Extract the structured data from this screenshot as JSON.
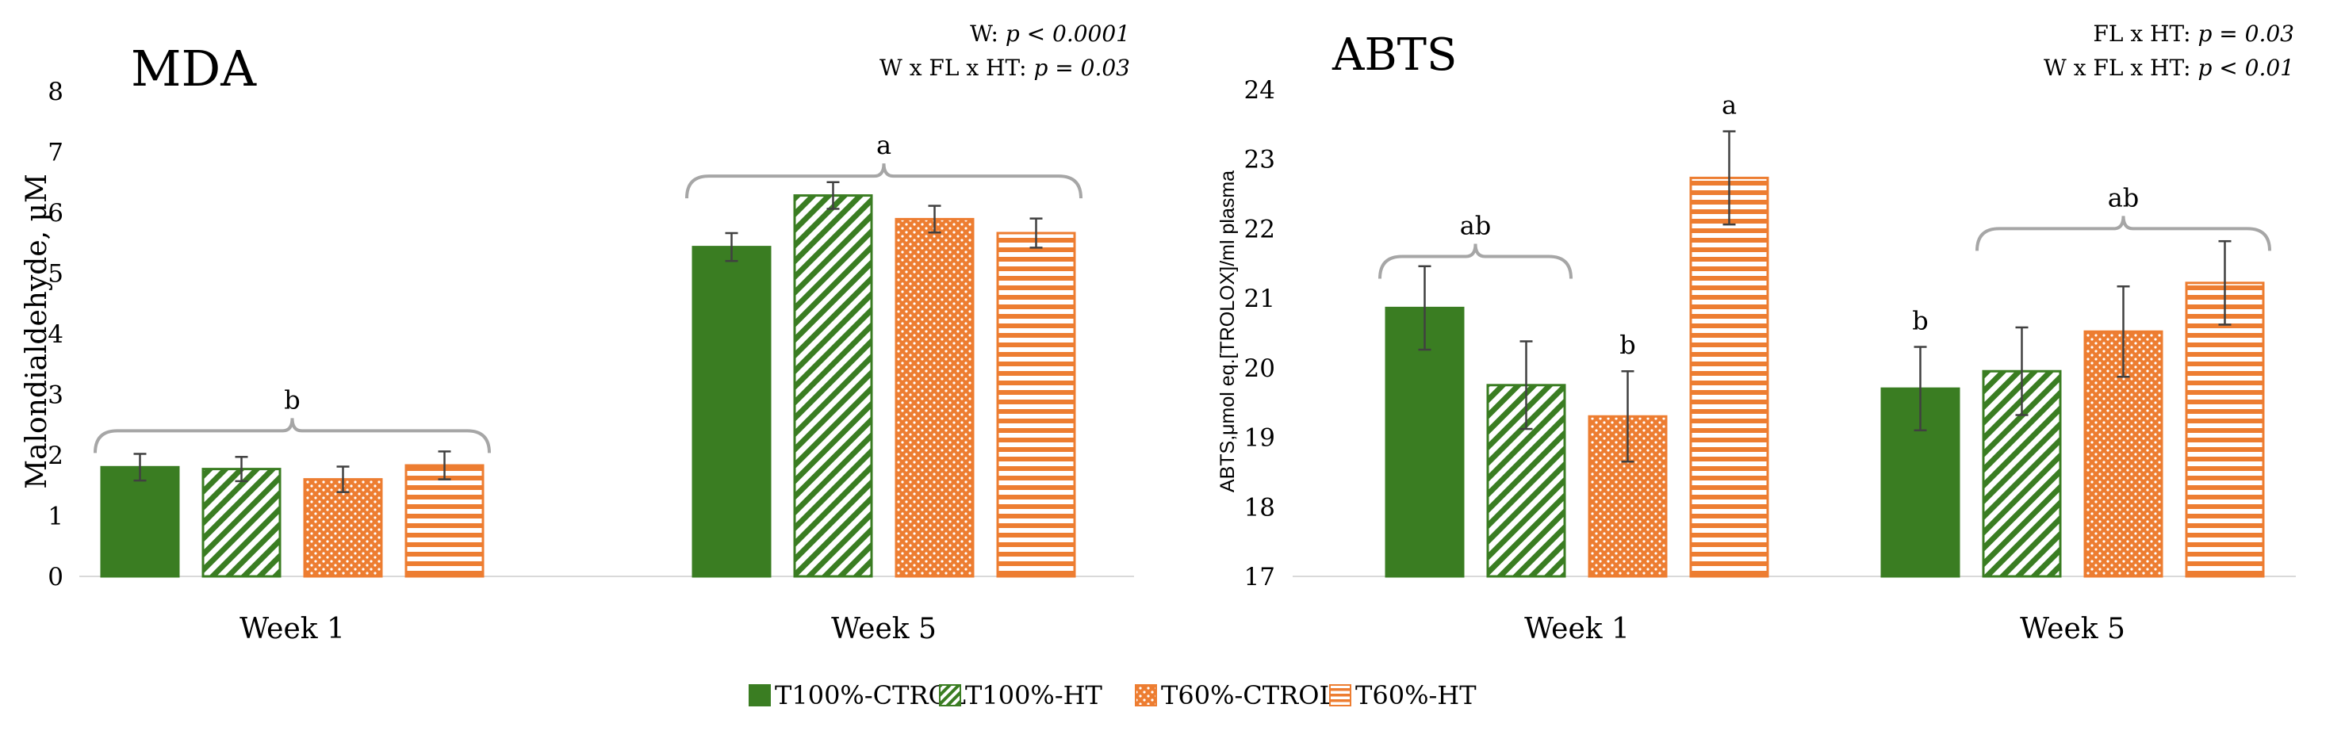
{
  "colors": {
    "green": "#3A7D22",
    "orange": "#ED7D31",
    "error": "#404040",
    "bracket": "#A6A6A6",
    "axis": "#D9D9D9",
    "text": "#000000"
  },
  "legend": {
    "items": [
      {
        "label": "T100%-CTROL",
        "color": "#3A7D22",
        "pattern": "solid"
      },
      {
        "label": "T100%-HT",
        "color": "#3A7D22",
        "pattern": "diag"
      },
      {
        "label": "T60%-CTROL",
        "color": "#ED7D31",
        "pattern": "dots"
      },
      {
        "label": "T60%-HT",
        "color": "#ED7D31",
        "pattern": "hlines"
      }
    ]
  },
  "chart_data": [
    {
      "type": "bar",
      "title": "MDA",
      "ylabel": "Malondialdehyde, μM",
      "xlabel": "",
      "ylim": [
        0,
        8
      ],
      "yticks": [
        0,
        1,
        2,
        3,
        4,
        5,
        6,
        7,
        8
      ],
      "categories": [
        "Week 1",
        "Week 5"
      ],
      "series": [
        {
          "name": "T100%-CTROL",
          "values": [
            1.8,
            5.43
          ],
          "errors": [
            0.22,
            0.23
          ]
        },
        {
          "name": "T100%-HT",
          "values": [
            1.77,
            6.28
          ],
          "errors": [
            0.2,
            0.22
          ]
        },
        {
          "name": "T60%-CTROL",
          "values": [
            1.6,
            5.89
          ],
          "errors": [
            0.21,
            0.22
          ]
        },
        {
          "name": "T60%-HT",
          "values": [
            1.83,
            5.66
          ],
          "errors": [
            0.23,
            0.24
          ]
        }
      ],
      "stats": [
        {
          "label": "W: ",
          "value": "p < 0.0001"
        },
        {
          "label": "W x FL x HT: ",
          "value": "p = 0.03"
        }
      ],
      "brackets": [
        {
          "label": "b",
          "from": 0,
          "to": 3,
          "category": 0,
          "level": 2.4
        },
        {
          "label": "a",
          "from": 0,
          "to": 3,
          "category": 1,
          "level": 6.6
        }
      ],
      "bar_labels": []
    },
    {
      "type": "bar",
      "title": "ABTS",
      "ylabel": "ABTS,μmol eq.[TROLOX]/ml plasma",
      "xlabel": "",
      "ylim": [
        17,
        24
      ],
      "yticks": [
        17,
        18,
        19,
        20,
        21,
        22,
        23,
        24
      ],
      "categories": [
        "Week 1",
        "Week 5"
      ],
      "series": [
        {
          "name": "T100%-CTROL",
          "values": [
            20.86,
            19.7
          ],
          "errors": [
            0.6,
            0.6
          ]
        },
        {
          "name": "T100%-HT",
          "values": [
            19.75,
            19.95
          ],
          "errors": [
            0.63,
            0.63
          ]
        },
        {
          "name": "T60%-CTROL",
          "values": [
            19.3,
            20.52
          ],
          "errors": [
            0.65,
            0.65
          ]
        },
        {
          "name": "T60%-HT",
          "values": [
            22.73,
            21.22
          ],
          "errors": [
            0.67,
            0.6
          ]
        }
      ],
      "stats": [
        {
          "label": "FL x HT: ",
          "value": "p = 0.03"
        },
        {
          "label": "W x FL x HT: ",
          "value": "p < 0.01"
        }
      ],
      "brackets": [
        {
          "label": "ab",
          "from": 0,
          "to": 1,
          "category": 0,
          "level": 21.6
        },
        {
          "label": "ab",
          "from": 1,
          "to": 3,
          "category": 1,
          "level": 22.0
        }
      ],
      "bar_labels": [
        {
          "label": "a",
          "series": 3,
          "category": 0
        },
        {
          "label": "b",
          "series": 2,
          "category": 0
        },
        {
          "label": "b",
          "series": 0,
          "category": 1
        }
      ]
    }
  ]
}
